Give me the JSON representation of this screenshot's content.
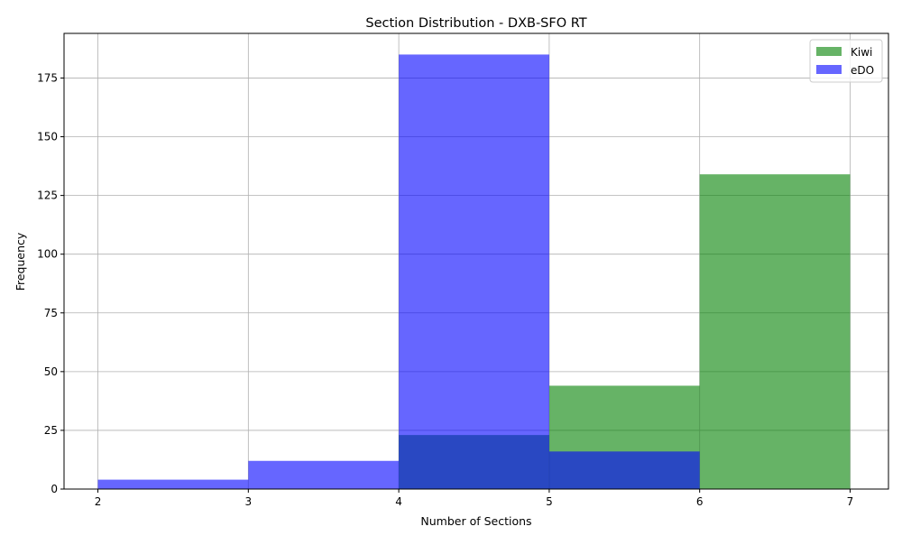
{
  "chart_data": {
    "type": "bar",
    "title": "Section Distribution - DXB-SFO RT",
    "xlabel": "Number of Sections",
    "ylabel": "Frequency",
    "xlim": [
      1.775,
      7.255
    ],
    "ylim": [
      0,
      194
    ],
    "x_ticks": [
      "2",
      "3",
      "4",
      "5",
      "6",
      "7"
    ],
    "y_ticks": [
      "0",
      "25",
      "50",
      "75",
      "100",
      "125",
      "150",
      "175"
    ],
    "bins": [
      [
        2,
        3
      ],
      [
        3,
        4
      ],
      [
        4,
        5
      ],
      [
        5,
        6
      ],
      [
        6,
        7
      ]
    ],
    "grid": true,
    "legend_position": "top-right",
    "series": [
      {
        "name": "Kiwi",
        "color": "#008000",
        "opacity": 0.6,
        "values": [
          0,
          0,
          23,
          44,
          134
        ]
      },
      {
        "name": "eDO",
        "color": "#0000ff",
        "opacity": 0.6,
        "values": [
          4,
          12,
          185,
          16,
          0
        ]
      }
    ]
  }
}
